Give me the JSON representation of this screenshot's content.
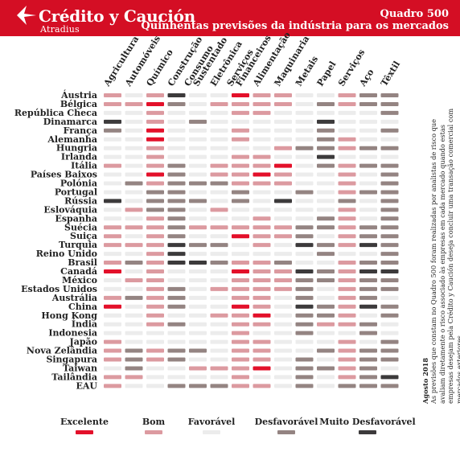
{
  "header": {
    "brand": "Crédito y Caución",
    "brand_sub": "Atradius",
    "title": "Quadro 500",
    "subtitle": "Quinhentas previsões da indústria para os mercados"
  },
  "note": {
    "date": "Agosto 2018",
    "text": "As previsões que constam no Quadro 500 foram realizadas por analistas de risco que avaliam diretamente o risco associado às empresas em cada mercado quando estas empresas desejam pela Crédito y Caución deseja concluir uma transação comercial com mercados exteriores."
  },
  "colors": {
    "brand_red": "#d40e24",
    "Excelente": "#e3102a",
    "Bom": "#dc9aa0",
    "Favorável": "#ececec",
    "Desfavorável": "#948482",
    "Muito Desfavorável": "#3c3a3b"
  },
  "chart_data": {
    "type": "heatmap",
    "columns": [
      "Agricultura",
      "Automóveis",
      "Químico",
      "Construção",
      "Consumo Sustentado",
      "Eletrônica",
      "Serviços Financeiros",
      "Alimentação",
      "Maquinaria",
      "Metais",
      "Papel",
      "Serviços",
      "Aço",
      "Têxtil"
    ],
    "rows": [
      "Áustria",
      "Bélgica",
      "República Checa",
      "Dinamarca",
      "França",
      "Alemanha",
      "Hungria",
      "Irlanda",
      "Itália",
      "Países Baixos",
      "Polónia",
      "Portugal",
      "Rússia",
      "Eslováquia",
      "Espanha",
      "Suécia",
      "Suiça",
      "Turquia",
      "Reino Unido",
      "Brasil",
      "Canadá",
      "México",
      "Estados Unidos",
      "Austrália",
      "China",
      "Hong Kong",
      "Índia",
      "Indonesia",
      "Japão",
      "Nova Zelândia",
      "Singapura",
      "Taiwan",
      "Tailândia",
      "EAU"
    ],
    "scale": [
      "Excelente",
      "Bom",
      "Favorável",
      "Desfavorável",
      "Muito Desfavorável"
    ],
    "values": [
      [
        "Bom",
        "Favorável",
        "Bom",
        "Muito Desfavorável",
        "Favorável",
        "Favorável",
        "Excelente",
        "Bom",
        "Bom",
        "Favorável",
        "Favorável",
        "Bom",
        "Desfavorável",
        "Desfavorável"
      ],
      [
        "Bom",
        "Bom",
        "Excelente",
        "Desfavorável",
        "Favorável",
        "Bom",
        "Bom",
        "Bom",
        "Bom",
        "Favorável",
        "Desfavorável",
        "Bom",
        "Desfavorável",
        "Desfavorável"
      ],
      [
        "Favorável",
        "Favorável",
        "Bom",
        "Favorável",
        "Favorável",
        "Favorável",
        "Bom",
        "Bom",
        "Favorável",
        "Favorável",
        "Favorável",
        "Favorável",
        "Favorável",
        "Desfavorável"
      ],
      [
        "Muito Desfavorável",
        "Favorável",
        "Bom",
        "Favorável",
        "Desfavorável",
        "Favorável",
        "Favorável",
        "Favorável",
        "Favorável",
        "Favorável",
        "Muito Desfavorável",
        "Favorável",
        "Favorável",
        "Favorável"
      ],
      [
        "Desfavorável",
        "Favorável",
        "Excelente",
        "Favorável",
        "Favorável",
        "Favorável",
        "Bom",
        "Favorável",
        "Favorável",
        "Favorável",
        "Desfavorável",
        "Favorável",
        "Favorável",
        "Desfavorável"
      ],
      [
        "Favorável",
        "Favorável",
        "Excelente",
        "Favorável",
        "Favorável",
        "Favorável",
        "Bom",
        "Favorável",
        "Favorável",
        "Favorável",
        "Desfavorável",
        "Bom",
        "Favorável",
        "Favorável"
      ],
      [
        "Favorável",
        "Favorável",
        "Bom",
        "Favorável",
        "Favorável",
        "Favorável",
        "Favorável",
        "Favorável",
        "Bom",
        "Desfavorável",
        "Desfavorável",
        "Bom",
        "Desfavorável",
        "Desfavorável"
      ],
      [
        "Favorável",
        "Favorável",
        "Bom",
        "Favorável",
        "Favorável",
        "Favorável",
        "Bom",
        "Bom",
        "Favorável",
        "Favorável",
        "Muito Desfavorável",
        "Favorável",
        "Favorável",
        "Favorável"
      ],
      [
        "Bom",
        "Favorável",
        "Bom",
        "Desfavorável",
        "Favorável",
        "Bom",
        "Bom",
        "Bom",
        "Excelente",
        "Favorável",
        "Desfavorável",
        "Bom",
        "Desfavorável",
        "Desfavorável"
      ],
      [
        "Favorável",
        "Favorável",
        "Excelente",
        "Desfavorável",
        "Favorável",
        "Bom",
        "Bom",
        "Excelente",
        "Bom",
        "Favorável",
        "Favorável",
        "Bom",
        "Favorável",
        "Desfavorável"
      ],
      [
        "Favorável",
        "Desfavorável",
        "Bom",
        "Desfavorável",
        "Desfavorável",
        "Desfavorável",
        "Bom",
        "Bom",
        "Bom",
        "Favorável",
        "Favorável",
        "Bom",
        "Favorável",
        "Desfavorável"
      ],
      [
        "Favorável",
        "Favorável",
        "Desfavorável",
        "Desfavorável",
        "Favorável",
        "Favorável",
        "Desfavorável",
        "Favorável",
        "Favorável",
        "Desfavorável",
        "Favorável",
        "Bom",
        "Desfavorável",
        "Desfavorável"
      ],
      [
        "Muito Desfavorável",
        "Favorável",
        "Desfavorável",
        "Desfavorável",
        "Desfavorável",
        "Favorável",
        "Desfavorável",
        "Favorável",
        "Muito Desfavorável",
        "Favorável",
        "Favorável",
        "Desfavorável",
        "Favorável",
        "Desfavorável"
      ],
      [
        "Favorável",
        "Bom",
        "Desfavorável",
        "Desfavorável",
        "Favorável",
        "Bom",
        "Favorável",
        "Favorável",
        "Favorável",
        "Favorável",
        "Favorável",
        "Bom",
        "Favorável",
        "Desfavorável"
      ],
      [
        "Favorável",
        "Favorável",
        "Bom",
        "Desfavorável",
        "Favorável",
        "Favorável",
        "Favorável",
        "Bom",
        "Favorável",
        "Favorável",
        "Desfavorável",
        "Bom",
        "Favorável",
        "Desfavorável"
      ],
      [
        "Bom",
        "Bom",
        "Bom",
        "Desfavorável",
        "Bom",
        "Bom",
        "Bom",
        "Bom",
        "Bom",
        "Desfavorável",
        "Desfavorável",
        "Bom",
        "Desfavorável",
        "Desfavorável"
      ],
      [
        "Bom",
        "Favorável",
        "Bom",
        "Desfavorável",
        "Favorável",
        "Favorável",
        "Excelente",
        "Bom",
        "Bom",
        "Desfavorável",
        "Favorável",
        "Bom",
        "Desfavorável",
        "Desfavorável"
      ],
      [
        "Bom",
        "Bom",
        "Bom",
        "Muito Desfavorável",
        "Desfavorável",
        "Desfavorável",
        "Favorável",
        "Bom",
        "Favorável",
        "Muito Desfavorável",
        "Desfavorável",
        "Bom",
        "Muito Desfavorável",
        "Desfavorável"
      ],
      [
        "Favorável",
        "Favorável",
        "Bom",
        "Muito Desfavorável",
        "Favorável",
        "Favorável",
        "Favorável",
        "Favorável",
        "Favorável",
        "Favorável",
        "Desfavorável",
        "Favorável",
        "Favorável",
        "Desfavorável"
      ],
      [
        "Bom",
        "Desfavorável",
        "Bom",
        "Muito Desfavorável",
        "Muito Desfavorável",
        "Desfavorável",
        "Bom",
        "Bom",
        "Desfavorável",
        "Favorável",
        "Favorável",
        "Bom",
        "Desfavorável",
        "Desfavorável"
      ],
      [
        "Excelente",
        "Favorável",
        "Bom",
        "Favorável",
        "Favorável",
        "Favorável",
        "Excelente",
        "Bom",
        "Bom",
        "Muito Desfavorável",
        "Desfavorável",
        "Bom",
        "Muito Desfavorável",
        "Muito Desfavorável"
      ],
      [
        "Favorável",
        "Bom",
        "Bom",
        "Favorável",
        "Favorável",
        "Favorável",
        "Bom",
        "Bom",
        "Bom",
        "Desfavorável",
        "Desfavorável",
        "Bom",
        "Desfavorável",
        "Desfavorável"
      ],
      [
        "Favorável",
        "Favorável",
        "Bom",
        "Desfavorável",
        "Favorável",
        "Bom",
        "Bom",
        "Bom",
        "Bom",
        "Desfavorável",
        "Favorável",
        "Bom",
        "Desfavorável",
        "Desfavorável"
      ],
      [
        "Bom",
        "Desfavorável",
        "Bom",
        "Desfavorável",
        "Favorável",
        "Favorável",
        "Bom",
        "Bom",
        "Favorável",
        "Desfavorável",
        "Favorável",
        "Bom",
        "Desfavorável",
        "Favorável"
      ],
      [
        "Excelente",
        "Favorável",
        "Bom",
        "Desfavorável",
        "Favorável",
        "Favorável",
        "Excelente",
        "Bom",
        "Favorável",
        "Muito Desfavorável",
        "Desfavorável",
        "Bom",
        "Muito Desfavorável",
        "Desfavorável"
      ],
      [
        "Favorável",
        "Favorável",
        "Bom",
        "Favorável",
        "Favorável",
        "Bom",
        "Bom",
        "Excelente",
        "Favorável",
        "Desfavorável",
        "Desfavorável",
        "Bom",
        "Favorável",
        "Desfavorável"
      ],
      [
        "Favorável",
        "Favorável",
        "Bom",
        "Desfavorável",
        "Favorável",
        "Favorável",
        "Bom",
        "Bom",
        "Favorável",
        "Desfavorável",
        "Bom",
        "Bom",
        "Desfavorável",
        "Favorável"
      ],
      [
        "Favorável",
        "Favorável",
        "Favorável",
        "Favorável",
        "Favorável",
        "Favorável",
        "Bom",
        "Favorável",
        "Favorável",
        "Desfavorável",
        "Favorável",
        "Favorável",
        "Desfavorável",
        "Favorável"
      ],
      [
        "Bom",
        "Favorável",
        "Favorável",
        "Favorável",
        "Favorável",
        "Favorável",
        "Bom",
        "Bom",
        "Favorável",
        "Favorável",
        "Favorável",
        "Bom",
        "Favorável",
        "Desfavorável"
      ],
      [
        "Bom",
        "Desfavorável",
        "Bom",
        "Desfavorável",
        "Desfavorável",
        "Favorável",
        "Bom",
        "Bom",
        "Favorável",
        "Favorável",
        "Desfavorável",
        "Bom",
        "Desfavorável",
        "Desfavorável"
      ],
      [
        "Bom",
        "Desfavorável",
        "Bom",
        "Desfavorável",
        "Favorável",
        "Favorável",
        "Bom",
        "Bom",
        "Favorável",
        "Desfavorável",
        "Favorável",
        "Bom",
        "Desfavorável",
        "Desfavorável"
      ],
      [
        "Favorável",
        "Desfavorável",
        "Favorável",
        "Favorável",
        "Bom",
        "Bom",
        "Bom",
        "Excelente",
        "Favorável",
        "Desfavorável",
        "Desfavorável",
        "Bom",
        "Desfavorável",
        "Favorável"
      ],
      [
        "Bom",
        "Bom",
        "Favorável",
        "Favorável",
        "Favorável",
        "Favorável",
        "Bom",
        "Favorável",
        "Favorável",
        "Desfavorável",
        "Favorável",
        "Bom",
        "Desfavorável",
        "Muito Desfavorável"
      ],
      [
        "Bom",
        "Favorável",
        "Favorável",
        "Desfavorável",
        "Desfavorável",
        "Desfavorável",
        "Bom",
        "Bom",
        "Favorável",
        "Desfavorável",
        "Favorável",
        "Desfavorável",
        "Desfavorável",
        "Desfavorável"
      ]
    ]
  }
}
